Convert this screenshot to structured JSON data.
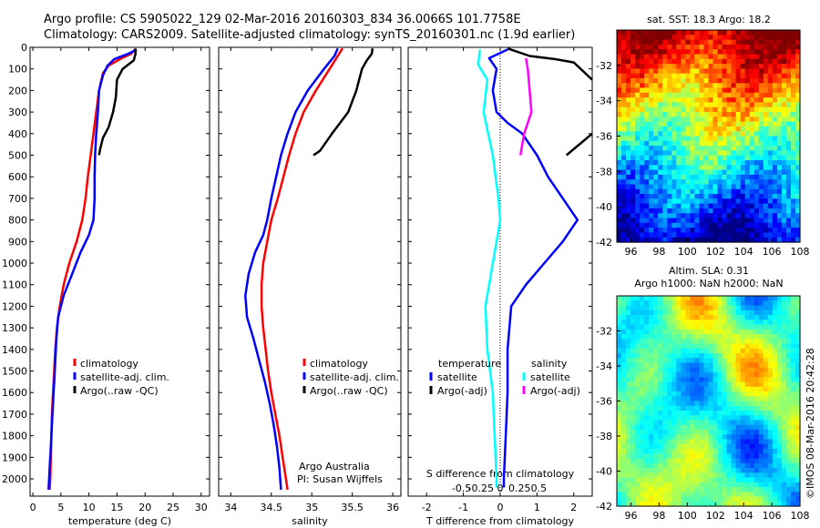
{
  "title_line1": "Argo profile: CS 5905022_129 02-Mar-2016 20160303_834 36.0066S 101.7758E",
  "title_line2": "Climatology: CARS2009. Satellite-adjusted climatology: synTS_20160301.nc (1.9d earlier)",
  "sst_title": "sat. SST: 18.3 Argo: 18.2",
  "sla_title1": "Altim. SLA: 0.31",
  "sla_title2": "Argo h1000: NaN h2000: NaN",
  "footer_org": "Argo Australia",
  "footer_pi": "PI: Susan Wijffels",
  "side_label": "©IMOS 08-Mar-2016 20:42:28",
  "colors": {
    "climatology": "#ff0000",
    "satellite": "#0000ff",
    "argo": "#000000",
    "temp_diff": "#00ffff",
    "argo_sal_diff": "#ff00ff"
  },
  "chart_data": [
    {
      "type": "line",
      "name": "temperature",
      "xlabel": "temperature (deg C)",
      "xlim": [
        -0.5,
        31.5
      ],
      "xticks": [
        0,
        5,
        10,
        15,
        20,
        25,
        30
      ],
      "ylim": [
        2080,
        0
      ],
      "yticks": [
        0,
        100,
        200,
        300,
        400,
        500,
        600,
        700,
        800,
        900,
        1000,
        1100,
        1200,
        1300,
        1400,
        1500,
        1600,
        1700,
        1800,
        1900,
        2000
      ],
      "legend": [
        "climatology",
        "satellite-adj. clim.",
        "Argo(..raw -QC)"
      ],
      "series": [
        {
          "name": "climatology",
          "color": "red",
          "points": [
            [
              18.2,
              10
            ],
            [
              17.5,
              30
            ],
            [
              15.5,
              55
            ],
            [
              13.5,
              85
            ],
            [
              12.5,
              120
            ],
            [
              11.8,
              200
            ],
            [
              11.3,
              300
            ],
            [
              10.8,
              400
            ],
            [
              10.3,
              500
            ],
            [
              9.8,
              600
            ],
            [
              9.4,
              700
            ],
            [
              8.8,
              800
            ],
            [
              7.8,
              900
            ],
            [
              6.5,
              1000
            ],
            [
              5.5,
              1100
            ],
            [
              4.8,
              1200
            ],
            [
              4.3,
              1300
            ],
            [
              4.0,
              1400
            ],
            [
              3.8,
              1500
            ],
            [
              3.6,
              1600
            ],
            [
              3.4,
              1700
            ],
            [
              3.3,
              1800
            ],
            [
              3.2,
              1900
            ],
            [
              3.1,
              2000
            ],
            [
              3.0,
              2050
            ]
          ]
        },
        {
          "name": "satellite-adj. clim.",
          "color": "blue",
          "points": [
            [
              18.5,
              10
            ],
            [
              17.0,
              30
            ],
            [
              14.5,
              55
            ],
            [
              13.3,
              85
            ],
            [
              12.5,
              130
            ],
            [
              11.8,
              200
            ],
            [
              11.6,
              300
            ],
            [
              11.3,
              400
            ],
            [
              11.1,
              500
            ],
            [
              11.0,
              600
            ],
            [
              11.0,
              700
            ],
            [
              10.8,
              800
            ],
            [
              10.0,
              870
            ],
            [
              8.5,
              950
            ],
            [
              7.0,
              1050
            ],
            [
              5.5,
              1150
            ],
            [
              4.5,
              1250
            ],
            [
              4.2,
              1350
            ],
            [
              4.0,
              1450
            ],
            [
              3.8,
              1550
            ],
            [
              3.6,
              1650
            ],
            [
              3.4,
              1750
            ],
            [
              3.2,
              1850
            ],
            [
              3.0,
              1950
            ],
            [
              2.8,
              2050
            ]
          ]
        },
        {
          "name": "Argo(..raw -QC)",
          "color": "black",
          "points": [
            [
              18.3,
              5
            ],
            [
              18.3,
              30
            ],
            [
              18.0,
              60
            ],
            [
              16.0,
              100
            ],
            [
              15.0,
              150
            ],
            [
              14.8,
              230
            ],
            [
              14.3,
              300
            ],
            [
              13.5,
              370
            ],
            [
              12.5,
              420
            ],
            [
              12.0,
              470
            ],
            [
              11.8,
              500
            ]
          ]
        }
      ]
    },
    {
      "type": "line",
      "name": "salinity",
      "xlabel": "salinity",
      "xlim": [
        33.85,
        36.1
      ],
      "xticks": [
        34,
        34.5,
        35,
        35.5,
        36
      ],
      "ylim": [
        2080,
        0
      ],
      "series": [
        {
          "name": "climatology",
          "color": "red",
          "points": [
            [
              35.38,
              5
            ],
            [
              35.32,
              40
            ],
            [
              35.22,
              100
            ],
            [
              35.05,
              200
            ],
            [
              34.9,
              300
            ],
            [
              34.8,
              400
            ],
            [
              34.72,
              500
            ],
            [
              34.65,
              600
            ],
            [
              34.58,
              700
            ],
            [
              34.5,
              800
            ],
            [
              34.45,
              900
            ],
            [
              34.4,
              1000
            ],
            [
              34.38,
              1100
            ],
            [
              34.38,
              1200
            ],
            [
              34.4,
              1300
            ],
            [
              34.43,
              1400
            ],
            [
              34.46,
              1500
            ],
            [
              34.5,
              1600
            ],
            [
              34.55,
              1700
            ],
            [
              34.6,
              1800
            ],
            [
              34.64,
              1900
            ],
            [
              34.68,
              2000
            ],
            [
              34.7,
              2050
            ]
          ]
        },
        {
          "name": "satellite-adj. clim.",
          "color": "blue",
          "points": [
            [
              35.32,
              5
            ],
            [
              35.28,
              40
            ],
            [
              35.15,
              100
            ],
            [
              34.95,
              200
            ],
            [
              34.8,
              300
            ],
            [
              34.7,
              400
            ],
            [
              34.62,
              500
            ],
            [
              34.56,
              600
            ],
            [
              34.5,
              700
            ],
            [
              34.45,
              800
            ],
            [
              34.4,
              870
            ],
            [
              34.3,
              950
            ],
            [
              34.22,
              1050
            ],
            [
              34.18,
              1150
            ],
            [
              34.2,
              1250
            ],
            [
              34.28,
              1350
            ],
            [
              34.35,
              1450
            ],
            [
              34.42,
              1550
            ],
            [
              34.48,
              1650
            ],
            [
              34.53,
              1750
            ],
            [
              34.57,
              1850
            ],
            [
              34.6,
              1950
            ],
            [
              34.62,
              2050
            ]
          ]
        },
        {
          "name": "Argo(..raw -QC)",
          "color": "black",
          "points": [
            [
              35.75,
              5
            ],
            [
              35.74,
              30
            ],
            [
              35.68,
              60
            ],
            [
              35.62,
              100
            ],
            [
              35.55,
              200
            ],
            [
              35.45,
              300
            ],
            [
              35.25,
              400
            ],
            [
              35.1,
              480
            ],
            [
              35.02,
              500
            ]
          ]
        }
      ]
    },
    {
      "type": "line",
      "name": "differences",
      "xlabel": "T difference from climatology",
      "xlim": [
        -2.5,
        2.5
      ],
      "xticks": [
        -2,
        -1,
        0,
        1,
        2
      ],
      "s_label": "S difference from climatology",
      "s_ticks": [
        "-0.5",
        "-0.25",
        "0",
        "0.25",
        "0.5"
      ],
      "legend_temp_title": "temperature",
      "legend_sal_title": "salinity",
      "legend": [
        "satellite",
        "Argo(-adj)",
        "satellite",
        "Argo(-adj)"
      ],
      "ylim": [
        2080,
        0
      ],
      "series": [
        {
          "name": "T satellite",
          "color": "blue",
          "points": [
            [
              0.2,
              10
            ],
            [
              -0.3,
              50
            ],
            [
              -0.1,
              100
            ],
            [
              -0.2,
              200
            ],
            [
              -0.1,
              300
            ],
            [
              0.2,
              350
            ],
            [
              0.6,
              400
            ],
            [
              1.0,
              500
            ],
            [
              1.3,
              600
            ],
            [
              1.7,
              700
            ],
            [
              2.1,
              800
            ],
            [
              1.7,
              900
            ],
            [
              1.2,
              1000
            ],
            [
              0.7,
              1100
            ],
            [
              0.3,
              1200
            ],
            [
              0.2,
              1400
            ],
            [
              0.2,
              1600
            ],
            [
              0.15,
              1800
            ],
            [
              0.1,
              2000
            ],
            [
              0.1,
              2040
            ]
          ]
        },
        {
          "name": "T Argo(-adj)",
          "color": "black",
          "points": [
            [
              0.2,
              5
            ],
            [
              0.8,
              40
            ],
            [
              1.5,
              55
            ],
            [
              2.0,
              70
            ],
            [
              2.5,
              150
            ]
          ]
        },
        {
          "name": "S satellite",
          "color": "cyan",
          "points": [
            [
              -0.55,
              10
            ],
            [
              -0.6,
              80
            ],
            [
              -0.35,
              150
            ],
            [
              -0.45,
              300
            ],
            [
              -0.2,
              500
            ],
            [
              -0.05,
              700
            ],
            [
              0.0,
              800
            ],
            [
              -0.1,
              900
            ],
            [
              -0.2,
              1000
            ],
            [
              -0.3,
              1100
            ],
            [
              -0.4,
              1200
            ],
            [
              -0.35,
              1400
            ],
            [
              -0.2,
              1600
            ],
            [
              -0.15,
              1800
            ],
            [
              -0.1,
              2000
            ],
            [
              -0.1,
              2040
            ]
          ]
        },
        {
          "name": "S Argo(-adj)",
          "color": "magenta",
          "points": [
            [
              0.7,
              50
            ],
            [
              0.75,
              100
            ],
            [
              0.8,
              200
            ],
            [
              0.85,
              300
            ],
            [
              0.65,
              400
            ],
            [
              0.55,
              500
            ]
          ]
        },
        {
          "name": "T Argo short",
          "color": "black",
          "points": [
            [
              2.5,
              400
            ],
            [
              1.8,
              500
            ]
          ]
        }
      ]
    },
    {
      "type": "heatmap",
      "name": "sst-map",
      "xticks": [
        96,
        98,
        100,
        102,
        104,
        106,
        108
      ],
      "yticks": [
        -32,
        -34,
        -36,
        -38,
        -40,
        -42
      ],
      "xlim": [
        95,
        108
      ],
      "ylim": [
        -42,
        -30
      ]
    },
    {
      "type": "heatmap",
      "name": "sla-map",
      "xticks": [
        96,
        98,
        100,
        102,
        104,
        106,
        108
      ],
      "yticks": [
        -32,
        -34,
        -36,
        -38,
        -40,
        -42
      ],
      "xlim": [
        95,
        108
      ],
      "ylim": [
        -42,
        -30
      ]
    }
  ]
}
